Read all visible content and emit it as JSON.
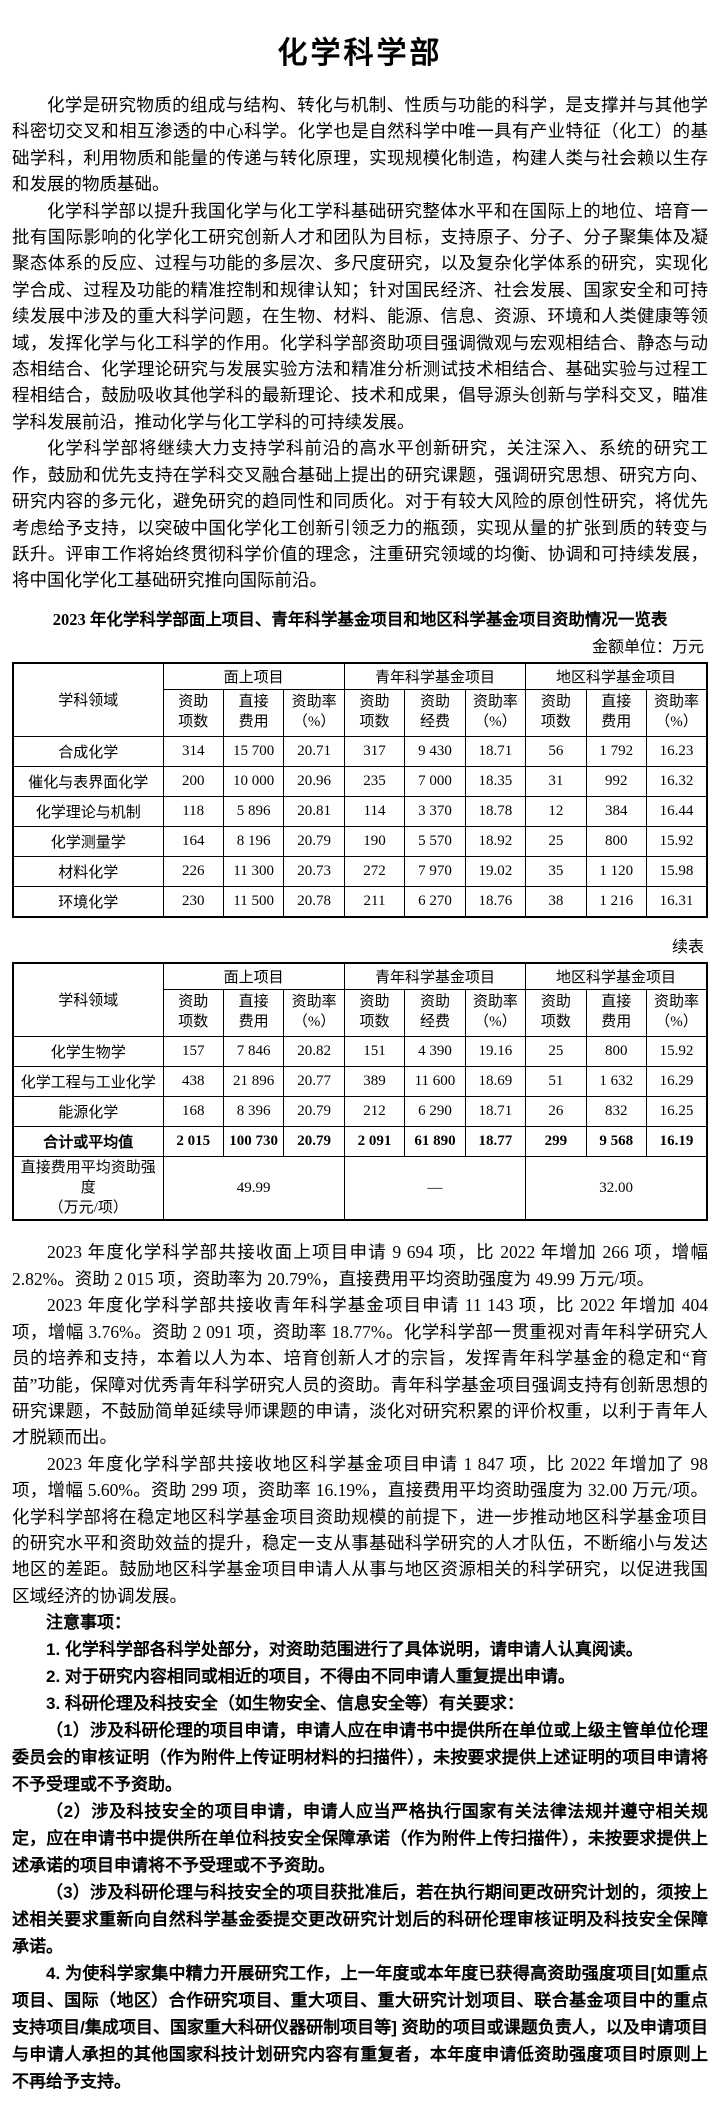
{
  "page": {
    "title": "化学科学部"
  },
  "intro_paragraphs": [
    "化学是研究物质的组成与结构、转化与机制、性质与功能的科学，是支撑并与其他学科密切交叉和相互渗透的中心科学。化学也是自然科学中唯一具有产业特征（化工）的基础学科，利用物质和能量的传递与转化原理，实现规模化制造，构建人类与社会赖以生存和发展的物质基础。",
    "化学科学部以提升我国化学与化工学科基础研究整体水平和在国际上的地位、培育一批有国际影响的化学化工研究创新人才和团队为目标，支持原子、分子、分子聚集体及凝聚态体系的反应、过程与功能的多层次、多尺度研究，以及复杂化学体系的研究，实现化学合成、过程及功能的精准控制和规律认知；针对国民经济、社会发展、国家安全和可持续发展中涉及的重大科学问题，在生物、材料、能源、信息、资源、环境和人类健康等领域，发挥化学与化工科学的作用。化学科学部资助项目强调微观与宏观相结合、静态与动态相结合、化学理论研究与发展实验方法和精准分析测试技术相结合、基础实验与过程工程相结合，鼓励吸收其他学科的最新理论、技术和成果，倡导源头创新与学科交叉，瞄准学科发展前沿，推动化学与化工学科的可持续发展。",
    "化学科学部将继续大力支持学科前沿的高水平创新研究，关注深入、系统的研究工作，鼓励和优先支持在学科交叉融合基础上提出的研究课题，强调研究思想、研究方向、研究内容的多元化，避免研究的趋同性和同质化。对于有较大风险的原创性研究，将优先考虑给予支持，以突破中国化学化工创新引领乏力的瓶颈，实现从量的扩张到质的转变与跃升。评审工作将始终贯彻科学价值的理念，注重研究领域的均衡、协调和可持续发展，将中国化学化工基础研究推向国际前沿。"
  ],
  "table": {
    "title": "2023 年化学科学部面上项目、青年科学基金项目和地区科学基金项目资助情况一览表",
    "unit": "金额单位：万元",
    "continuation_label": "续表",
    "corner_header": "学科领域",
    "groups": [
      {
        "label": "面上项目",
        "cols": [
          "资助\n项数",
          "直接\n费用",
          "资助率\n（%）"
        ]
      },
      {
        "label": "青年科学基金项目",
        "cols": [
          "资助\n项数",
          "资助\n经费",
          "资助率\n（%）"
        ]
      },
      {
        "label": "地区科学基金项目",
        "cols": [
          "资助\n项数",
          "直接\n费用",
          "资助率\n（%）"
        ]
      }
    ],
    "part1_rows": [
      {
        "field": "合成化学",
        "values": [
          "314",
          "15 700",
          "20.71",
          "317",
          "9 430",
          "18.71",
          "56",
          "1 792",
          "16.23"
        ]
      },
      {
        "field": "催化与表界面化学",
        "values": [
          "200",
          "10 000",
          "20.96",
          "235",
          "7 000",
          "18.35",
          "31",
          "992",
          "16.32"
        ]
      },
      {
        "field": "化学理论与机制",
        "values": [
          "118",
          "5 896",
          "20.81",
          "114",
          "3 370",
          "18.78",
          "12",
          "384",
          "16.44"
        ]
      },
      {
        "field": "化学测量学",
        "values": [
          "164",
          "8 196",
          "20.79",
          "190",
          "5 570",
          "18.92",
          "25",
          "800",
          "15.92"
        ]
      },
      {
        "field": "材料化学",
        "values": [
          "226",
          "11 300",
          "20.73",
          "272",
          "7 970",
          "19.02",
          "35",
          "1 120",
          "15.98"
        ]
      },
      {
        "field": "环境化学",
        "values": [
          "230",
          "11 500",
          "20.78",
          "211",
          "6 270",
          "18.76",
          "38",
          "1 216",
          "16.31"
        ]
      }
    ],
    "part2_rows": [
      {
        "field": "化学生物学",
        "values": [
          "157",
          "7 846",
          "20.82",
          "151",
          "4 390",
          "19.16",
          "25",
          "800",
          "15.92"
        ]
      },
      {
        "field": "化学工程与工业化学",
        "values": [
          "438",
          "21 896",
          "20.77",
          "389",
          "11 600",
          "18.69",
          "51",
          "1 632",
          "16.29"
        ]
      },
      {
        "field": "能源化学",
        "values": [
          "168",
          "8 396",
          "20.79",
          "212",
          "6 290",
          "18.71",
          "26",
          "832",
          "16.25"
        ]
      },
      {
        "field": "合计或平均值",
        "bold": true,
        "values": [
          "2 015",
          "100 730",
          "20.79",
          "2 091",
          "61 890",
          "18.77",
          "299",
          "9 568",
          "16.19"
        ]
      }
    ],
    "intensity_row": {
      "label": "直接费用平均资助强度\n（万元/项）",
      "values": [
        "49.99",
        "—",
        "32.00"
      ]
    }
  },
  "post_paragraphs": [
    "2023 年度化学科学部共接收面上项目申请 9 694 项，比 2022 年增加 266 项，增幅 2.82%。资助 2 015 项，资助率为 20.79%，直接费用平均资助强度为 49.99 万元/项。",
    "2023 年度化学科学部共接收青年科学基金项目申请 11 143 项，比 2022 年增加 404 项，增幅 3.76%。资助 2 091 项，资助率 18.77%。化学科学部一贯重视对青年科学研究人员的培养和支持，本着以人为本、培育创新人才的宗旨，发挥青年科学基金的稳定和“育苗”功能，保障对优秀青年科学研究人员的资助。青年科学基金项目强调支持有创新思想的研究课题，不鼓励简单延续导师课题的申请，淡化对研究积累的评价权重，以利于青年人才脱颖而出。",
    "2023 年度化学科学部共接收地区科学基金项目申请 1 847 项，比 2022 年增加了 98 项，增幅 5.60%。资助 299 项，资助率 16.19%，直接费用平均资助强度为 32.00 万元/项。化学科学部将在稳定地区科学基金项目资助规模的前提下，进一步推动地区科学基金项目的研究水平和资助效益的提升，稳定一支从事基础科学研究的人才队伍，不断缩小与发达地区的差距。鼓励地区科学基金项目申请人从事与地区资源相关的科学研究，以促进我国区域经济的协调发展。"
  ],
  "notes": {
    "heading": "注意事项：",
    "items": [
      "1. 化学科学部各科学处部分，对资助范围进行了具体说明，请申请人认真阅读。",
      "2. 对于研究内容相同或相近的项目，不得由不同申请人重复提出申请。",
      "3. 科研伦理及科技安全（如生物安全、信息安全等）有关要求：",
      "（1）涉及科研伦理的项目申请，申请人应在申请书中提供所在单位或上级主管单位伦理委员会的审核证明（作为附件上传证明材料的扫描件），未按要求提供上述证明的项目申请将不予受理或不予资助。",
      "（2）涉及科技安全的项目申请，申请人应当严格执行国家有关法律法规并遵守相关规定，应在申请书中提供所在单位科技安全保障承诺（作为附件上传扫描件），未按要求提供上述承诺的项目申请将不予受理或不予资助。",
      "（3）涉及科研伦理与科技安全的项目获批准后，若在执行期间更改研究计划的，须按上述相关要求重新向自然科学基金委提交更改研究计划后的科研伦理审核证明及科技安全保障承诺。",
      "4. 为使科学家集中精力开展研究工作，上一年度或本年度已获得高资助强度项目[如重点项目、国际（地区）合作研究项目、重大项目、重大研究计划项目、联合基金项目中的重点支持项目/集成项目、国家重大科研仪器研制项目等] 资助的项目或课题负责人，以及申请项目与申请人承担的其他国家科技计划研究内容有重复者，本年度申请低资助强度项目时原则上不再给予支持。"
    ]
  }
}
